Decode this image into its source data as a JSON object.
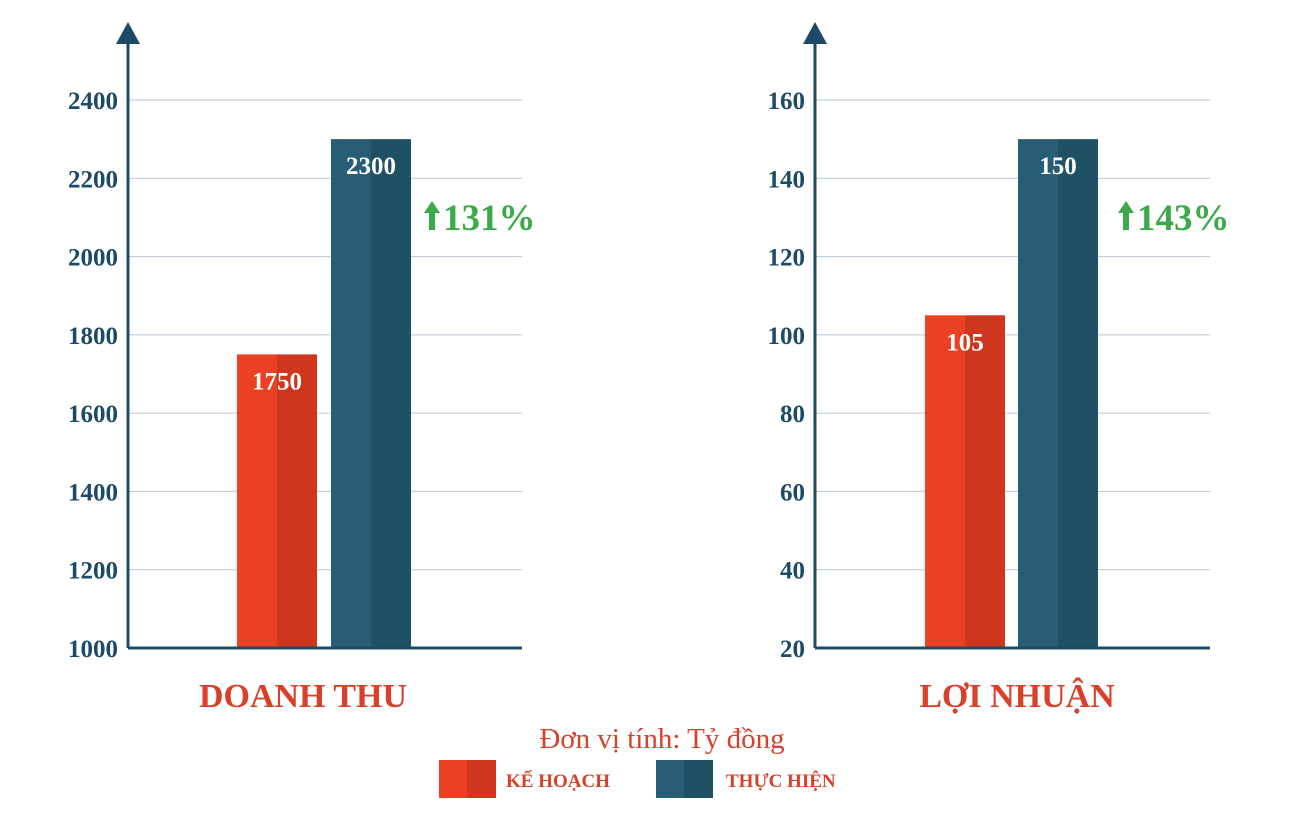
{
  "colors": {
    "axis": "#1d4a66",
    "grid": "#b9c9d4",
    "tick_text": "#1d4a66",
    "plan": "#ec4024",
    "plan_shade": "#cf361f",
    "actual": "#285e75",
    "actual_shade": "#1f5064",
    "growth": "#3ca94a",
    "title": "#d8402a"
  },
  "icons": {
    "growth": "up-arrow-icon"
  },
  "unit_note": "Đơn vị tính: Tỷ đồng",
  "legend": [
    {
      "label": "KẾ HOẠCH",
      "color": "#ec4024",
      "shade": "#cf361f"
    },
    {
      "label": "THỰC HIỆN",
      "color": "#285e75",
      "shade": "#1f5064"
    }
  ],
  "chart_data": [
    {
      "type": "bar",
      "title": "DOANH THU",
      "series": [
        {
          "name": "KẾ HOẠCH",
          "values": [
            1750
          ]
        },
        {
          "name": "THỰC HIỆN",
          "values": [
            2300
          ]
        }
      ],
      "value_labels": [
        "1750",
        "2300"
      ],
      "growth_label": "131%",
      "ylim": [
        1000,
        2400
      ],
      "yticks": [
        1000,
        1200,
        1400,
        1600,
        1800,
        2000,
        2200,
        2400
      ],
      "ytick_labels": [
        "1000",
        "1200",
        "1400",
        "1600",
        "1800",
        "2000",
        "2200",
        "2400"
      ],
      "grid": true
    },
    {
      "type": "bar",
      "title": "LỢI NHUẬN",
      "series": [
        {
          "name": "KẾ HOẠCH",
          "values": [
            105
          ]
        },
        {
          "name": "THỰC HIỆN",
          "values": [
            150
          ]
        }
      ],
      "value_labels": [
        "105",
        "150"
      ],
      "growth_label": "143%",
      "ylim": [
        20,
        160
      ],
      "yticks": [
        20,
        40,
        60,
        80,
        100,
        120,
        140,
        160
      ],
      "ytick_labels": [
        "20",
        "40",
        "60",
        "80",
        "100",
        "120",
        "140",
        "160"
      ],
      "grid": true
    }
  ]
}
